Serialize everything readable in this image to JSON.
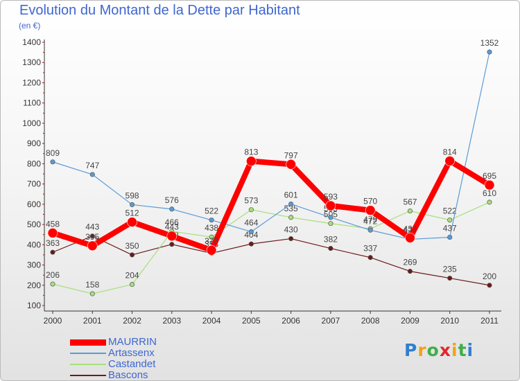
{
  "title": "Evolution du Montant de la Dette par Habitant",
  "unit": "(en €)",
  "brand": {
    "text": "Proxiti",
    "letters": [
      "P",
      "r",
      "o",
      "x",
      "i",
      "t",
      "i"
    ],
    "colors": [
      "#2f7fd0",
      "#f0a31a",
      "#3fae49",
      "#e2262d",
      "#f0a31a",
      "#3fae49",
      "#2f7fd0"
    ]
  },
  "colors": {
    "axis": "#333333",
    "grid_tick": "#cc0000",
    "title": "#3e66d1"
  },
  "chart_data": {
    "type": "line",
    "title": "Evolution du Montant de la Dette par Habitant",
    "subtitle": "(en €)",
    "xlabel": "",
    "ylabel": "",
    "ylim": [
      100,
      1400
    ],
    "yticks": [
      100,
      200,
      300,
      400,
      500,
      600,
      700,
      800,
      900,
      1000,
      1100,
      1200,
      1300,
      1400
    ],
    "grid": false,
    "legend_position": "bottom-left",
    "x": [
      "2000",
      "2001",
      "2002",
      "2003",
      "2004",
      "2005",
      "2006",
      "2007",
      "2008",
      "2009",
      "2010",
      "2011"
    ],
    "series": [
      {
        "name": "Bascons",
        "color": "#6b1a1a",
        "values": [
          363,
          443,
          350,
          402,
          358,
          404,
          430,
          382,
          337,
          269,
          235,
          200
        ],
        "labels": [
          "363",
          "443",
          "350",
          "402",
          "358",
          "404",
          "430",
          "382",
          "337",
          "269",
          "235",
          "200"
        ]
      },
      {
        "name": "Castandet",
        "color": "#a6e07a",
        "values": [
          206,
          158,
          204,
          466,
          438,
          573,
          535,
          505,
          479,
          567,
          522,
          610
        ],
        "labels": [
          "206",
          "158",
          "204",
          "466",
          "438",
          "573",
          "535",
          "505",
          "479",
          "567",
          "522",
          "610"
        ]
      },
      {
        "name": "Artassenx",
        "color": "#5b9bd5",
        "values": [
          809,
          747,
          598,
          576,
          522,
          464,
          601,
          535,
          472,
          427,
          437,
          1352
        ],
        "labels": [
          "809",
          "747",
          "598",
          "576",
          "522",
          "464",
          "601",
          "535",
          "472",
          "427",
          "437",
          "1352"
        ]
      },
      {
        "name": "MAURRIN",
        "color": "#ff0000",
        "values": [
          458,
          395,
          512,
          443,
          373,
          813,
          797,
          593,
          570,
          434,
          814,
          695
        ],
        "labels": [
          "458",
          "395",
          "512",
          "443",
          "373",
          "813",
          "797",
          "593",
          "570",
          "434",
          "814",
          "695"
        ]
      }
    ],
    "legend_order": [
      "MAURRIN",
      "Artassenx",
      "Castandet",
      "Bascons"
    ]
  }
}
